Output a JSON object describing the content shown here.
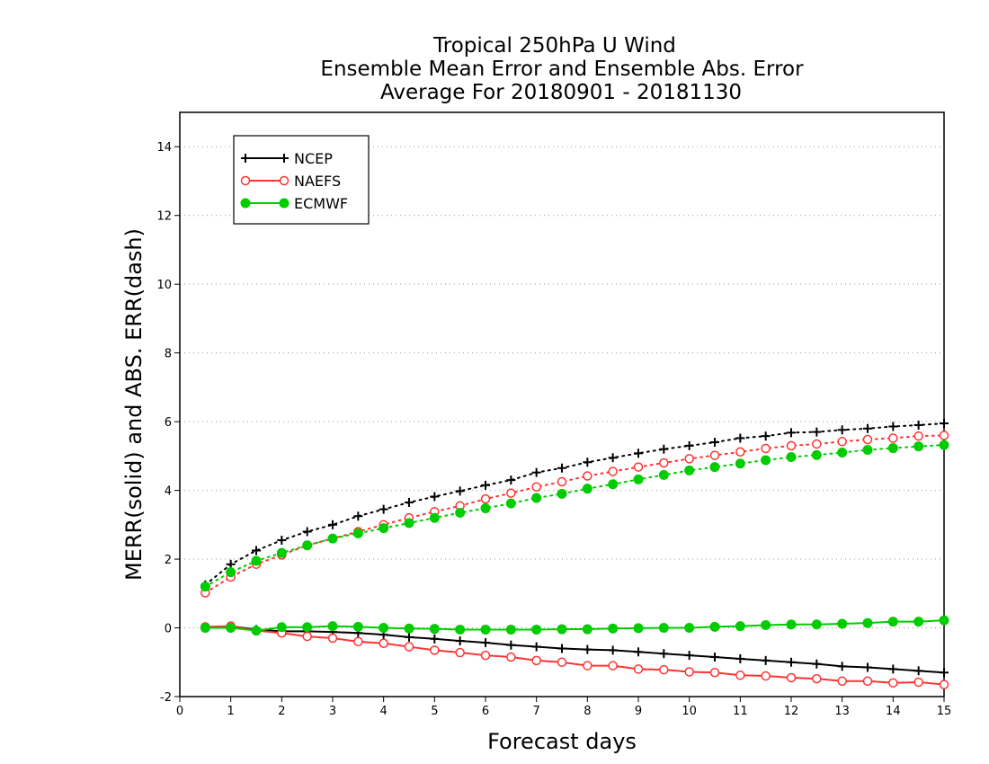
{
  "chart_data": {
    "type": "line",
    "title": [
      "Tropical 250hPa U Wind",
      "Ensemble Mean Error and Ensemble Abs. Error",
      "Average For 20180901 - 20181130"
    ],
    "xlabel": "Forecast days",
    "ylabel": "MERR(solid) and ABS. ERR(dash)",
    "xlim": [
      0,
      15
    ],
    "ylim": [
      -2,
      15
    ],
    "xticks": [
      "0",
      "1",
      "2",
      "3",
      "4",
      "5",
      "6",
      "7",
      "8",
      "9",
      "10",
      "11",
      "12",
      "13",
      "14",
      "15"
    ],
    "yticks": [
      "-2",
      "0",
      "2",
      "4",
      "6",
      "8",
      "10",
      "12",
      "14"
    ],
    "ytick_values": [
      -2,
      0,
      2,
      4,
      6,
      8,
      10,
      12,
      14
    ],
    "grid": "horizontal dotted",
    "legend_position": "top-left",
    "x": [
      0.5,
      1.0,
      1.5,
      2.0,
      2.5,
      3.0,
      3.5,
      4.0,
      4.5,
      5.0,
      5.5,
      6.0,
      6.5,
      7.0,
      7.5,
      8.0,
      8.5,
      9.0,
      9.5,
      10.0,
      10.5,
      11.0,
      11.5,
      12.0,
      12.5,
      13.0,
      13.5,
      14.0,
      14.5,
      15.0
    ],
    "series": [
      {
        "name": "NCEP",
        "color": "#000000",
        "marker": "plus",
        "merr": [
          0.0,
          0.05,
          -0.05,
          -0.1,
          -0.1,
          -0.12,
          -0.15,
          -0.2,
          -0.27,
          -0.32,
          -0.38,
          -0.43,
          -0.5,
          -0.55,
          -0.6,
          -0.63,
          -0.65,
          -0.7,
          -0.75,
          -0.8,
          -0.85,
          -0.9,
          -0.95,
          -1.0,
          -1.05,
          -1.12,
          -1.15,
          -1.2,
          -1.25,
          -1.3
        ],
        "abs_err": [
          1.25,
          1.85,
          2.25,
          2.55,
          2.8,
          3.0,
          3.25,
          3.45,
          3.65,
          3.82,
          3.98,
          4.15,
          4.3,
          4.52,
          4.65,
          4.82,
          4.95,
          5.08,
          5.2,
          5.3,
          5.4,
          5.52,
          5.58,
          5.68,
          5.7,
          5.76,
          5.8,
          5.86,
          5.9,
          5.95
        ]
      },
      {
        "name": "NAEFS",
        "color": "#ff3333",
        "marker": "open-circle",
        "merr": [
          0.03,
          0.05,
          -0.08,
          -0.15,
          -0.25,
          -0.3,
          -0.4,
          -0.45,
          -0.55,
          -0.65,
          -0.72,
          -0.8,
          -0.85,
          -0.95,
          -1.0,
          -1.1,
          -1.1,
          -1.2,
          -1.22,
          -1.28,
          -1.3,
          -1.38,
          -1.4,
          -1.45,
          -1.48,
          -1.55,
          -1.55,
          -1.6,
          -1.58,
          -1.65
        ],
        "abs_err": [
          1.02,
          1.48,
          1.85,
          2.12,
          2.4,
          2.6,
          2.8,
          3.0,
          3.2,
          3.38,
          3.55,
          3.75,
          3.92,
          4.1,
          4.25,
          4.42,
          4.55,
          4.68,
          4.8,
          4.92,
          5.02,
          5.12,
          5.22,
          5.3,
          5.35,
          5.42,
          5.48,
          5.52,
          5.58,
          5.6
        ]
      },
      {
        "name": "ECMWF",
        "color": "#00cc00",
        "marker": "filled-circle",
        "merr": [
          0.0,
          0.0,
          -0.08,
          0.02,
          0.02,
          0.05,
          0.03,
          0.0,
          -0.02,
          -0.03,
          -0.05,
          -0.05,
          -0.05,
          -0.05,
          -0.04,
          -0.04,
          -0.02,
          -0.01,
          0.0,
          0.0,
          0.03,
          0.05,
          0.08,
          0.1,
          0.1,
          0.12,
          0.14,
          0.18,
          0.18,
          0.22
        ],
        "abs_err": [
          1.2,
          1.62,
          1.95,
          2.18,
          2.4,
          2.6,
          2.75,
          2.9,
          3.05,
          3.2,
          3.35,
          3.48,
          3.62,
          3.78,
          3.9,
          4.05,
          4.18,
          4.32,
          4.45,
          4.58,
          4.68,
          4.78,
          4.88,
          4.97,
          5.03,
          5.1,
          5.18,
          5.23,
          5.28,
          5.32
        ]
      }
    ]
  }
}
